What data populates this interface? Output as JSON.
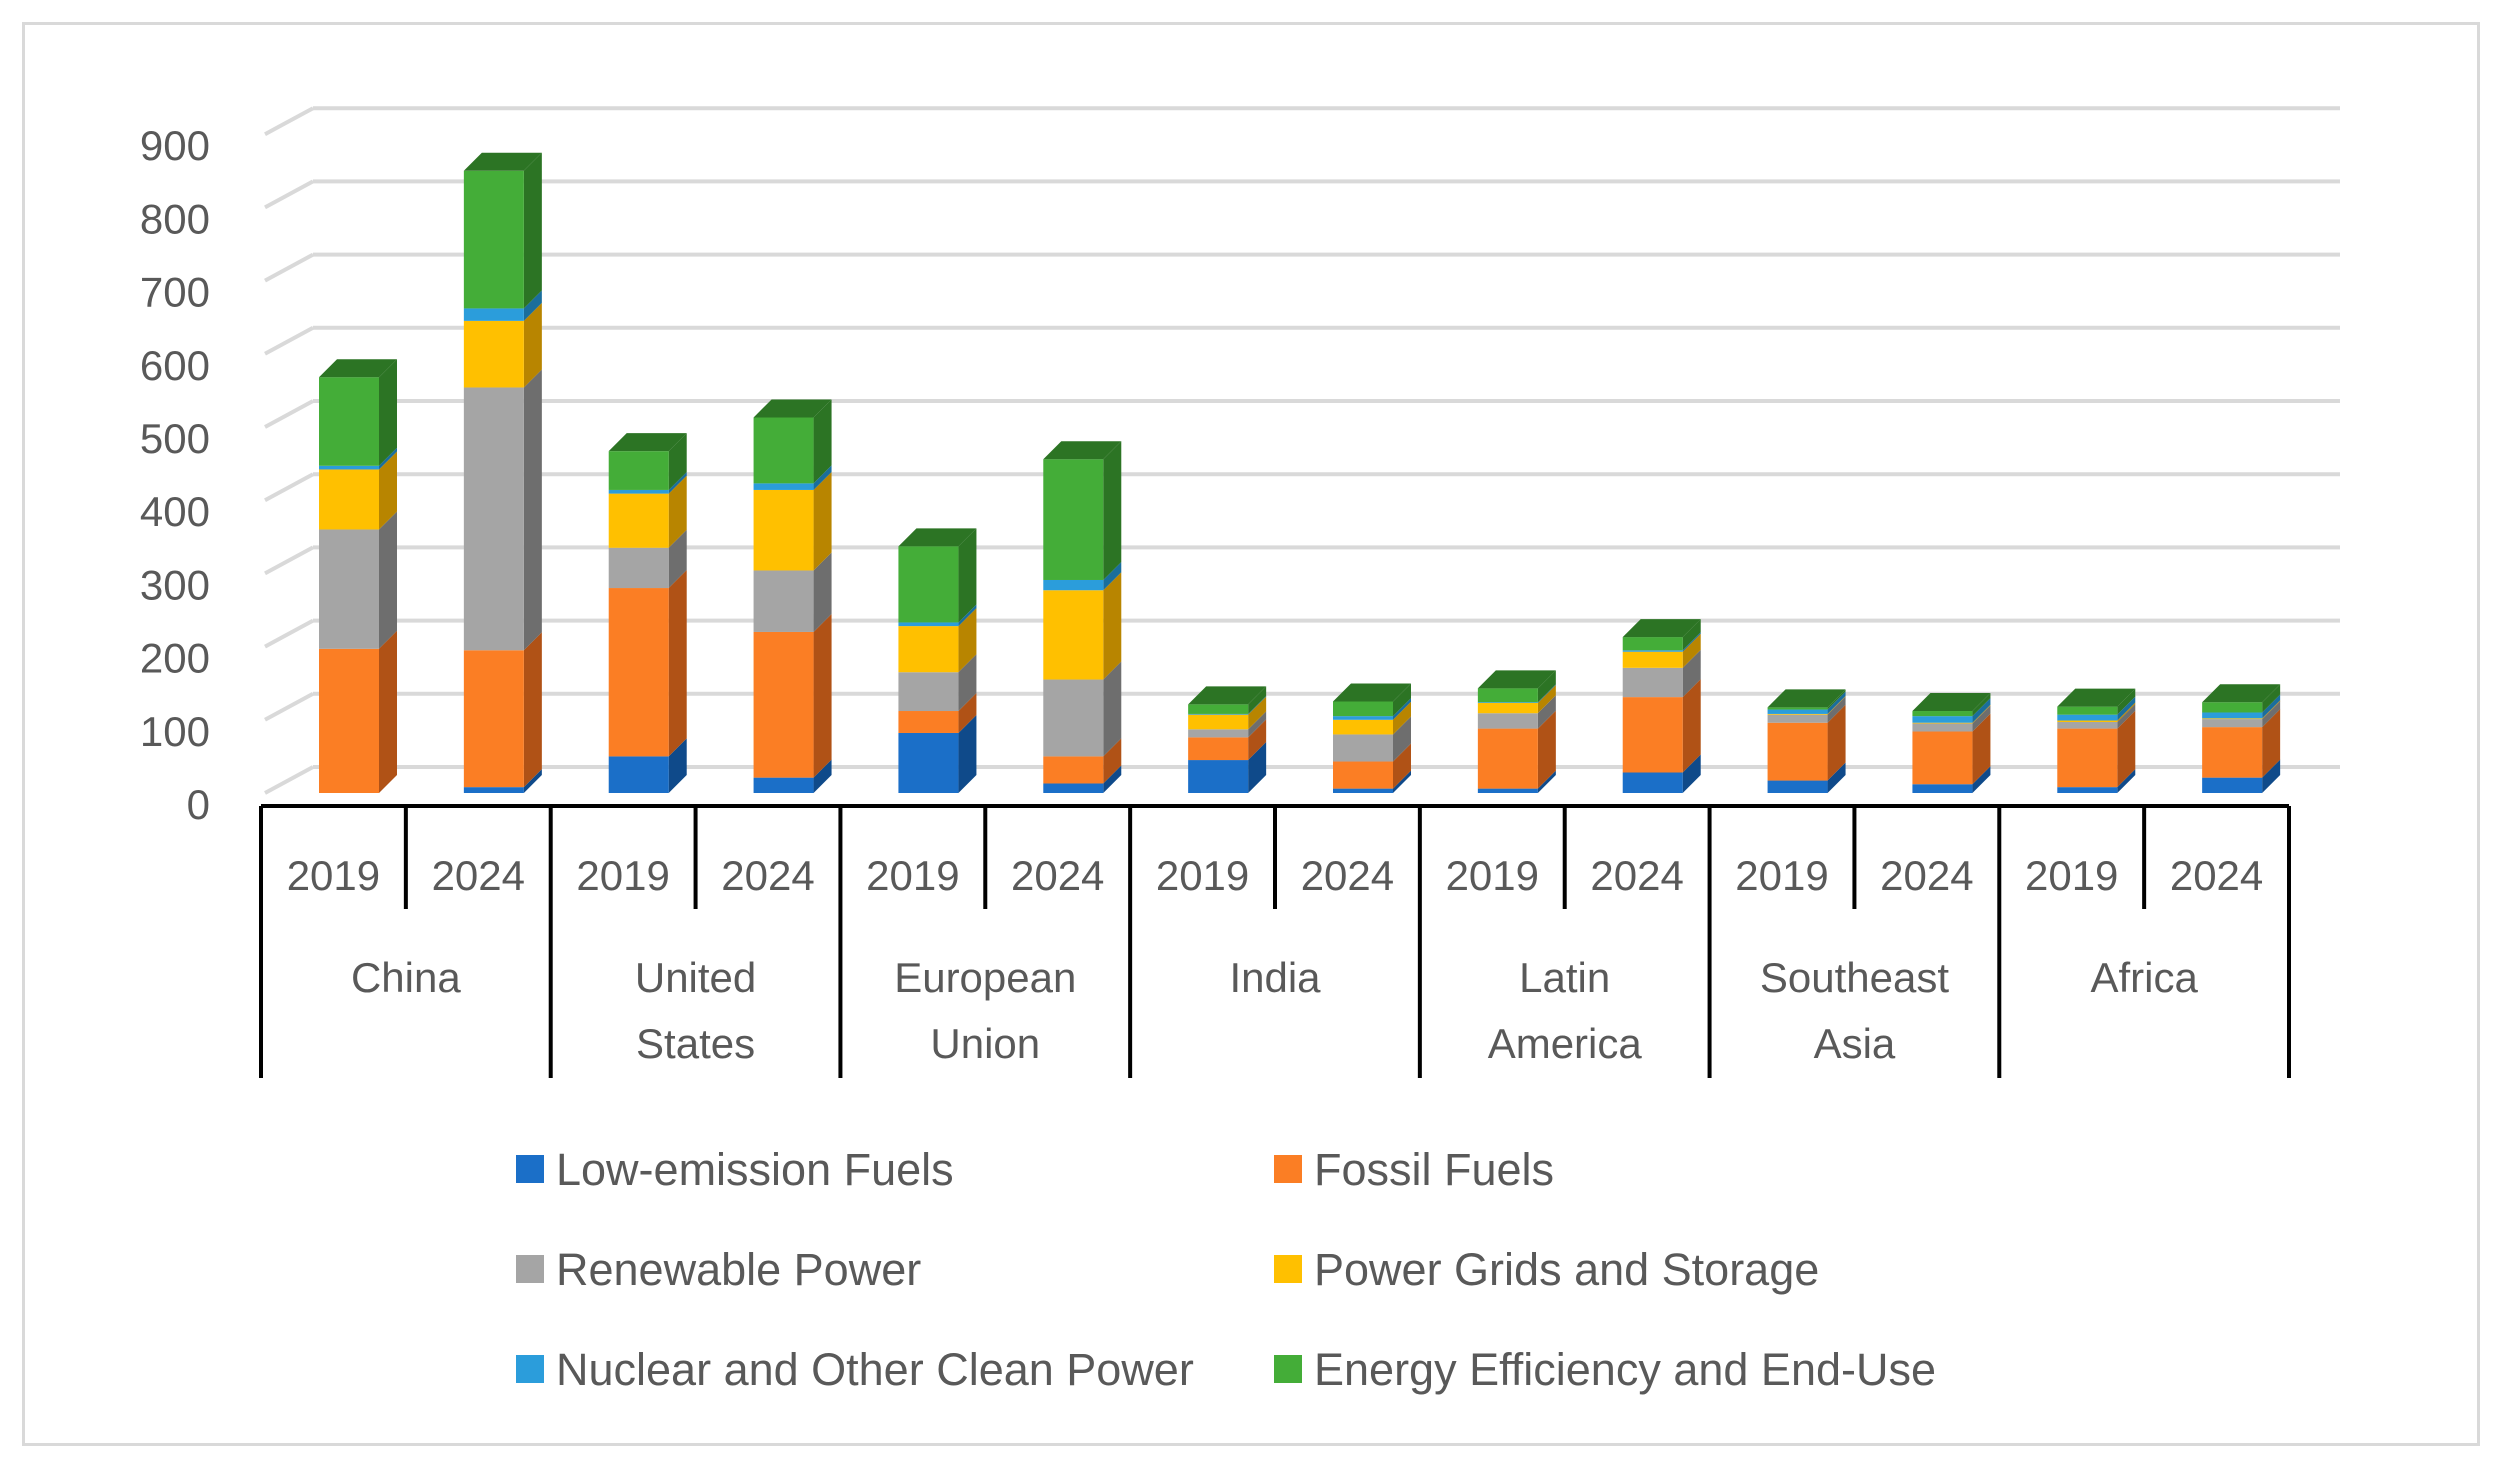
{
  "chart_data": {
    "type": "bar",
    "subtype": "stacked-3d",
    "title": "",
    "xlabel": "",
    "ylabel": "",
    "ylim": [
      0,
      900
    ],
    "yticks": [
      "0",
      "100",
      "200",
      "300",
      "400",
      "500",
      "600",
      "700",
      "800",
      "900"
    ],
    "grid": true,
    "legend_position": "bottom",
    "groups": [
      {
        "name": "China",
        "lines": [
          "China"
        ],
        "years": [
          "2019",
          "2024"
        ]
      },
      {
        "name": "United States",
        "lines": [
          "United",
          "States"
        ],
        "years": [
          "2019",
          "2024"
        ]
      },
      {
        "name": "European Union",
        "lines": [
          "European",
          "Union"
        ],
        "years": [
          "2019",
          "2024"
        ]
      },
      {
        "name": "India",
        "lines": [
          "India"
        ],
        "years": [
          "2019",
          "2024"
        ]
      },
      {
        "name": "Latin America",
        "lines": [
          "Latin",
          "America"
        ],
        "years": [
          "2019",
          "2024"
        ]
      },
      {
        "name": "Southeast Asia",
        "lines": [
          "Southeast",
          "Asia"
        ],
        "years": [
          "2019",
          "2024"
        ]
      },
      {
        "name": "Africa",
        "lines": [
          "Africa"
        ],
        "years": [
          "2019",
          "2024"
        ]
      }
    ],
    "series": [
      {
        "name": "Low-emission Fuels",
        "color": "#1b6fc8",
        "side": "#0f4a8a",
        "values": [
          0,
          8,
          50,
          21,
          82,
          13,
          45,
          6,
          6,
          28,
          17,
          12,
          8,
          21
        ]
      },
      {
        "name": "Fossil Fuels",
        "color": "#fb7e24",
        "side": "#b05216",
        "values": [
          197,
          187,
          230,
          199,
          30,
          37,
          31,
          37,
          82,
          103,
          79,
          72,
          80,
          69
        ]
      },
      {
        "name": "Renewable Power",
        "color": "#a5a5a5",
        "side": "#6e6e6e",
        "values": [
          163,
          359,
          55,
          84,
          53,
          105,
          11,
          37,
          21,
          40,
          11,
          11,
          9,
          11
        ]
      },
      {
        "name": "Power Grids and Storage",
        "color": "#ffc000",
        "side": "#b88500",
        "values": [
          82,
          91,
          74,
          110,
          63,
          122,
          20,
          20,
          14,
          22,
          1,
          1,
          2,
          1
        ]
      },
      {
        "name": "Nuclear and Other Clean Power",
        "color": "#2b9ddb",
        "side": "#1a6e9c",
        "values": [
          5,
          17,
          5,
          9,
          5,
          14,
          1,
          5,
          1,
          2,
          6,
          9,
          8,
          8
        ]
      },
      {
        "name": "Energy Efficiency and End-Use",
        "color": "#44ad38",
        "side": "#2c7424",
        "values": [
          121,
          188,
          53,
          90,
          104,
          165,
          13,
          20,
          19,
          18,
          3,
          7,
          11,
          14
        ]
      }
    ]
  }
}
